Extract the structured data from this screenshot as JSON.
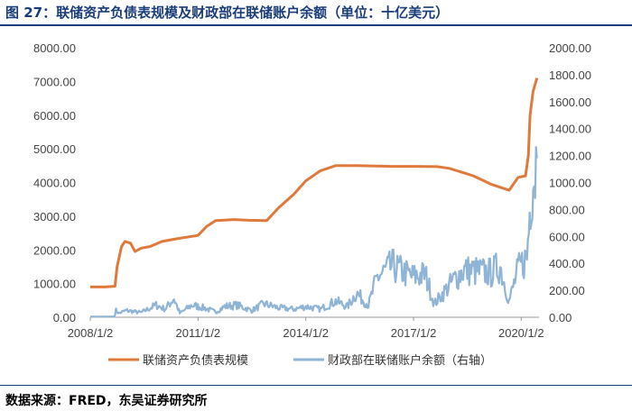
{
  "header": {
    "title": "图 27：联储资产负债表规模及财政部在联储账户余额（单位：十亿美元）"
  },
  "footer": {
    "source": "数据来源：FRED，东吴证券研究所"
  },
  "chart_data": {
    "type": "line",
    "title": "图 27：联储资产负债表规模及财政部在联储账户余额（单位：十亿美元）",
    "x_ticks": [
      "2008/1/2",
      "2011/1/2",
      "2014/1/2",
      "2017/1/2",
      "2020/1/2"
    ],
    "y_ticks": [
      "0.00",
      "1000.00",
      "2000.00",
      "3000.00",
      "4000.00",
      "5000.00",
      "6000.00",
      "7000.00",
      "8000.00"
    ],
    "y2_ticks": [
      "0.00",
      "200.00",
      "400.00",
      "600.00",
      "800.00",
      "1000.00",
      "1200.00",
      "1400.00",
      "1600.00",
      "1800.00",
      "2000.00"
    ],
    "ylim": [
      0,
      8000
    ],
    "y2lim": [
      0,
      2000
    ],
    "xlim": [
      "2008-01-02",
      "2020-07-01"
    ],
    "grid": false,
    "legend_position": "bottom",
    "series": [
      {
        "name": "联储资产负债表规模",
        "axis": "left",
        "color": "#e07a3c",
        "points": [
          [
            "2008-01-02",
            900
          ],
          [
            "2008-06-01",
            900
          ],
          [
            "2008-09-10",
            920
          ],
          [
            "2008-10-01",
            1500
          ],
          [
            "2008-11-15",
            2100
          ],
          [
            "2008-12-20",
            2250
          ],
          [
            "2009-02-15",
            2200
          ],
          [
            "2009-04-01",
            1950
          ],
          [
            "2009-06-01",
            2050
          ],
          [
            "2009-09-01",
            2100
          ],
          [
            "2010-01-01",
            2250
          ],
          [
            "2010-06-01",
            2330
          ],
          [
            "2011-01-02",
            2430
          ],
          [
            "2011-04-01",
            2700
          ],
          [
            "2011-07-01",
            2870
          ],
          [
            "2012-01-01",
            2900
          ],
          [
            "2012-06-01",
            2880
          ],
          [
            "2012-12-01",
            2870
          ],
          [
            "2013-04-01",
            3250
          ],
          [
            "2013-09-01",
            3650
          ],
          [
            "2014-01-02",
            4050
          ],
          [
            "2014-06-01",
            4350
          ],
          [
            "2014-11-01",
            4500
          ],
          [
            "2015-06-01",
            4500
          ],
          [
            "2016-06-01",
            4480
          ],
          [
            "2017-01-02",
            4480
          ],
          [
            "2017-09-01",
            4470
          ],
          [
            "2018-01-01",
            4420
          ],
          [
            "2018-09-01",
            4200
          ],
          [
            "2019-03-01",
            3950
          ],
          [
            "2019-09-01",
            3770
          ],
          [
            "2019-12-01",
            4150
          ],
          [
            "2020-02-15",
            4200
          ],
          [
            "2020-03-15",
            4800
          ],
          [
            "2020-04-01",
            6000
          ],
          [
            "2020-05-01",
            6700
          ],
          [
            "2020-06-10",
            7100
          ]
        ]
      },
      {
        "name": "财政部在联储账户余额（右轴）",
        "axis": "right",
        "color": "#8fb4d6",
        "points": [
          [
            "2008-01-02",
            5
          ],
          [
            "2008-09-01",
            5
          ],
          [
            "2008-09-20",
            50
          ],
          [
            "2008-10-20",
            30
          ],
          [
            "2009-01-01",
            50
          ],
          [
            "2009-06-01",
            35
          ],
          [
            "2009-11-01",
            90
          ],
          [
            "2010-02-01",
            60
          ],
          [
            "2010-05-01",
            140
          ],
          [
            "2010-07-01",
            30
          ],
          [
            "2010-11-01",
            90
          ],
          [
            "2011-03-01",
            70
          ],
          [
            "2011-07-01",
            40
          ],
          [
            "2011-10-01",
            80
          ],
          [
            "2012-02-01",
            90
          ],
          [
            "2012-07-01",
            50
          ],
          [
            "2012-11-01",
            100
          ],
          [
            "2013-04-01",
            70
          ],
          [
            "2013-09-01",
            60
          ],
          [
            "2014-01-02",
            80
          ],
          [
            "2014-06-01",
            60
          ],
          [
            "2014-11-01",
            120
          ],
          [
            "2015-03-01",
            80
          ],
          [
            "2015-06-01",
            180
          ],
          [
            "2015-10-01",
            90
          ],
          [
            "2016-01-01",
            300
          ],
          [
            "2016-06-01",
            380
          ],
          [
            "2016-10-01",
            330
          ],
          [
            "2017-01-02",
            300
          ],
          [
            "2017-05-01",
            320
          ],
          [
            "2017-08-01",
            100
          ],
          [
            "2017-11-01",
            180
          ],
          [
            "2018-03-01",
            290
          ],
          [
            "2018-06-01",
            350
          ],
          [
            "2018-10-01",
            340
          ],
          [
            "2019-03-01",
            330
          ],
          [
            "2019-06-01",
            380
          ],
          [
            "2019-09-01",
            120
          ],
          [
            "2019-12-01",
            350
          ],
          [
            "2020-03-01",
            450
          ],
          [
            "2020-04-15",
            1000
          ],
          [
            "2020-06-10",
            1180
          ]
        ]
      }
    ]
  }
}
